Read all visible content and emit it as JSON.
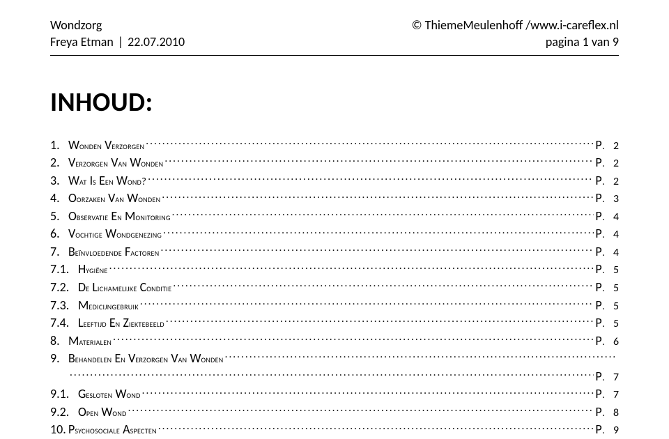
{
  "header": {
    "left_line1": "Wondzorg",
    "left_author": "Freya Etman",
    "left_date": "22.07.2010",
    "right_copyright": "© ThiemeMeulenhoff / ",
    "right_url": "www.i-careflex.nl",
    "right_page": "pagina 1 van 9"
  },
  "title": "INHOUD:",
  "page_label_prefix": "P.",
  "toc": [
    {
      "num": "1.",
      "text": "Wonden verzorgen",
      "page": "2",
      "sub": false
    },
    {
      "num": "2.",
      "text": "Verzorgen van wonden",
      "page": "2",
      "sub": false
    },
    {
      "num": "3.",
      "text": "Wat is een wond?",
      "page": "2",
      "sub": false
    },
    {
      "num": "4.",
      "text": "Oorzaken van wonden",
      "page": "3",
      "sub": false
    },
    {
      "num": "5.",
      "text": "Observatie en monitoring",
      "page": "4",
      "sub": false
    },
    {
      "num": "6.",
      "text": "Vochtige wondgenezing",
      "page": "4",
      "sub": false
    },
    {
      "num": "7.",
      "text": "Beïnvloedende factoren",
      "page": "4",
      "sub": false
    },
    {
      "num": "7.1.",
      "text": "Hygiëne",
      "page": "5",
      "sub": true
    },
    {
      "num": "7.2.",
      "text": "De lichamelijke conditie",
      "page": "5",
      "sub": true
    },
    {
      "num": "7.3.",
      "text": "Medicijngebruik",
      "page": "5",
      "sub": true
    },
    {
      "num": "7.4.",
      "text": "Leeftijd en ziektebeeld",
      "page": "5",
      "sub": true
    },
    {
      "num": "8.",
      "text": "Materialen",
      "page": "6",
      "sub": false
    },
    {
      "num": "9.",
      "text": "Behandelen en verzorgen van wonden",
      "page": "",
      "sub": false,
      "noPage": true
    },
    {
      "num": "",
      "text": "",
      "page": "7",
      "sub": false,
      "continuation": true
    },
    {
      "num": "9.1.",
      "text": "Gesloten wond",
      "page": "7",
      "sub": true
    },
    {
      "num": "9.2.",
      "text": "Open wond",
      "page": "8",
      "sub": true
    },
    {
      "num": "10.",
      "text": "Psychosociale aspecten",
      "page": "9",
      "sub": false
    }
  ]
}
